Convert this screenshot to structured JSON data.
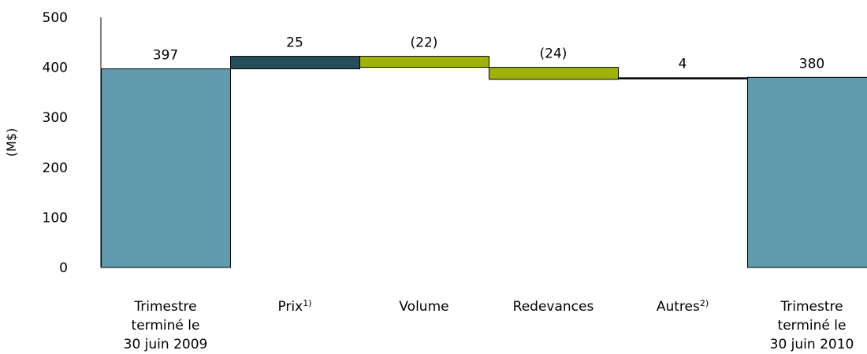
{
  "chart_data": {
    "type": "waterfall",
    "ylabel": "(M$)",
    "ylim": [
      0,
      500
    ],
    "yticks": [
      0,
      100,
      200,
      300,
      400,
      500
    ],
    "grid": false,
    "legend": "none",
    "items": [
      {
        "id": "start",
        "kind": "total",
        "value": 397,
        "label": "397",
        "category": [
          "Trimestre",
          "terminé le",
          "30 juin 2009"
        ],
        "color": "#5f9cad"
      },
      {
        "id": "prix",
        "kind": "delta",
        "value": 25,
        "label": "25",
        "category": [
          "Prix"
        ],
        "sup": "1)",
        "color": "#264d5c"
      },
      {
        "id": "volume",
        "kind": "delta",
        "value": -22,
        "label": "(22)",
        "category": [
          "Volume"
        ],
        "color": "#9fb20a"
      },
      {
        "id": "redevances",
        "kind": "delta",
        "value": -24,
        "label": "(24)",
        "category": [
          "Redevances"
        ],
        "color": "#9fb20a"
      },
      {
        "id": "autres",
        "kind": "delta",
        "value": 4,
        "label": "4",
        "category": [
          "Autres"
        ],
        "sup": "2)",
        "color": "#000000"
      },
      {
        "id": "end",
        "kind": "total",
        "value": 380,
        "label": "380",
        "category": [
          "Trimestre",
          "terminé le",
          "30 juin 2010"
        ],
        "color": "#5f9cad"
      }
    ]
  }
}
